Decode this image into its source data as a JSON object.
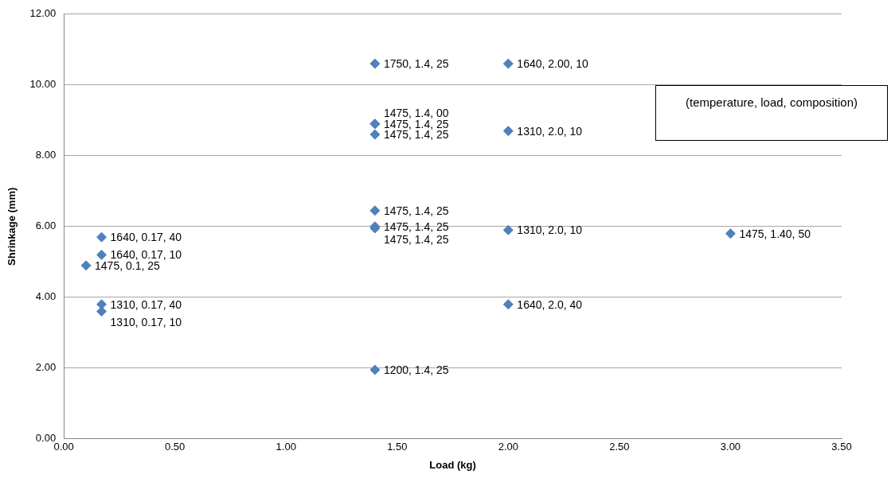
{
  "chart_data": {
    "type": "scatter",
    "xlabel": "Load (kg)",
    "ylabel": "Shrinkage (mm)",
    "x": [
      0.17,
      0.17,
      0.1,
      0.17,
      0.17,
      1.4,
      1.4,
      1.4,
      1.4,
      1.4,
      1.4,
      2.0,
      2.0,
      2.0,
      2.0,
      3.0,
      1.4,
      1.4
    ],
    "series": [
      {
        "color": "#4f81bd",
        "values": [
          5.7,
          5.2,
          4.9,
          3.8,
          3.6,
          10.6,
          8.9,
          8.6,
          6.45,
          6.0,
          1.95,
          10.6,
          8.7,
          5.9,
          3.8,
          5.8,
          8.9,
          5.95
        ],
        "value_labels": [
          "1640, 0.17, 40",
          "1640, 0.17, 10",
          "1475, 0.1, 25",
          "1310, 0.17, 40",
          "1310, 0.17, 10",
          "1750, 1.4, 25",
          "1475, 1.4, 25",
          "1475, 1.4, 25",
          "1475, 1.4, 25",
          "1475, 1.4, 25",
          "1200, 1.4, 25",
          "1640, 2.00, 10",
          "1310, 2.0, 10",
          "1310, 2.0, 10",
          "1640, 2.0, 40",
          "1475, 1.40, 50",
          "1475, 1.4, 00",
          "1475, 1.4, 25"
        ]
      }
    ],
    "annotations": [
      "(temperature, load, composition)"
    ],
    "xlim": [
      0,
      3.5
    ],
    "xticks": [
      {
        "value": 0,
        "label": "0.00"
      },
      {
        "value": 0.5,
        "label": "0.50"
      },
      {
        "value": 1,
        "label": "1.00"
      },
      {
        "value": 1.5,
        "label": "1.50"
      },
      {
        "value": 2,
        "label": "2.00"
      },
      {
        "value": 2.5,
        "label": "2.50"
      },
      {
        "value": 3,
        "label": "3.00"
      },
      {
        "value": 3.5,
        "label": "3.50"
      }
    ],
    "ylim": [
      0,
      12
    ],
    "yticks": [
      {
        "value": 0,
        "label": "0.00"
      },
      {
        "value": 2,
        "label": "2.00"
      },
      {
        "value": 4,
        "label": "4.00"
      },
      {
        "value": 6,
        "label": "6.00"
      },
      {
        "value": 8,
        "label": "8.00"
      },
      {
        "value": 10,
        "label": "10.00"
      },
      {
        "value": 12,
        "label": "12.00"
      }
    ],
    "grid": "y",
    "marker": "diamond",
    "legend": false
  }
}
